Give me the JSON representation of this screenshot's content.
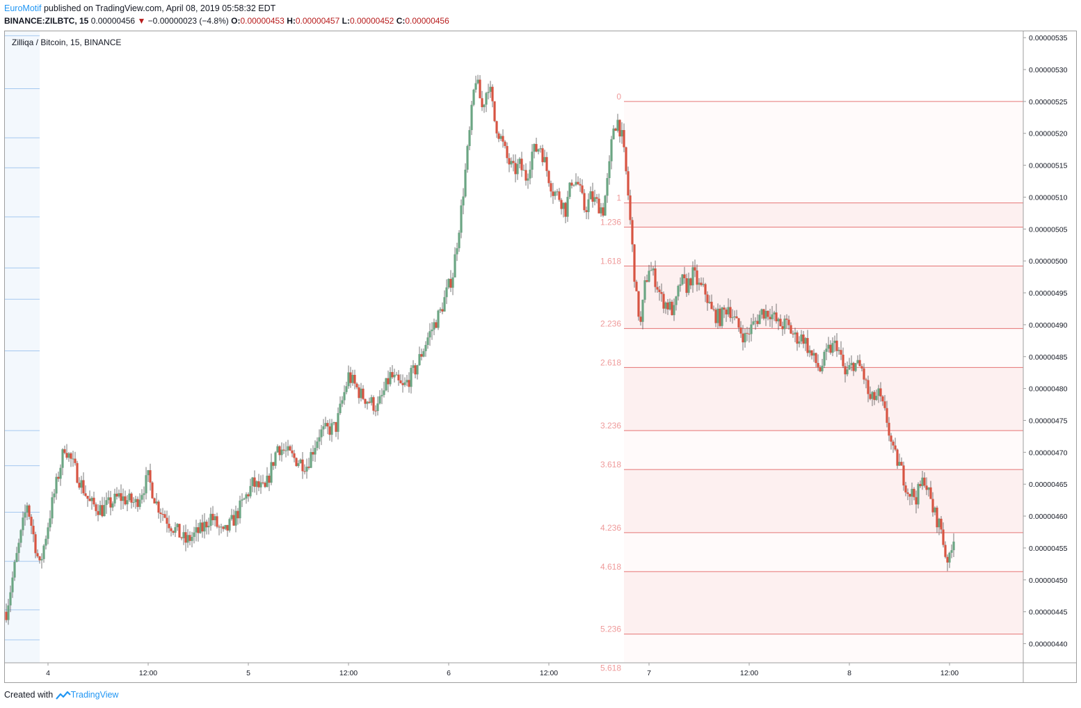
{
  "header": {
    "author": "EuroMotif",
    "published": "published on TradingView.com, April 08, 2019 05:58:32 EDT",
    "symbol": "BINANCE:ZILBTC, 15",
    "last": "0.00000456",
    "change_arrow": "▼",
    "change": "−0.00000023 (−4.8%)",
    "o_label": "O:",
    "o_val": "0.00000453",
    "h_label": "H:",
    "h_val": "0.00000457",
    "l_label": "L:",
    "l_val": "0.00000452",
    "c_label": "C:",
    "c_val": "0.00000456"
  },
  "footer": {
    "created_with": "Created with",
    "brand": "TradingView"
  },
  "colors": {
    "up": "#6ba583",
    "down": "#d75442",
    "fib_line": "#e57373",
    "fib_label": "#ef9a9a",
    "fib_fill": "#fdf0f0",
    "vol_line": "#a5c8ef",
    "vol_fill": "#f3f8fd"
  },
  "chart_data": {
    "type": "candlestick",
    "title": "Zilliqa / Bitcoin, 15, BINANCE",
    "ylim": [
      4.37e-06,
      5.36e-06
    ],
    "y_ticks": [
      "0.00000535",
      "0.00000530",
      "0.00000525",
      "0.00000520",
      "0.00000515",
      "0.00000510",
      "0.00000505",
      "0.00000500",
      "0.00000495",
      "0.00000490",
      "0.00000485",
      "0.00000480",
      "0.00000475",
      "0.00000470",
      "0.00000465",
      "0.00000460",
      "0.00000455",
      "0.00000450",
      "0.00000445",
      "0.00000440"
    ],
    "y_tick_values": [
      535,
      530,
      525,
      520,
      515,
      510,
      505,
      500,
      495,
      490,
      485,
      480,
      475,
      470,
      465,
      460,
      455,
      450,
      445,
      440
    ],
    "x_range_hours": [
      -6.5,
      96
    ],
    "x_ticks": [
      {
        "label": "4",
        "hour": 0
      },
      {
        "label": "12:00",
        "hour": 12
      },
      {
        "label": "5",
        "hour": 24
      },
      {
        "label": "12:00",
        "hour": 36
      },
      {
        "label": "6",
        "hour": 48
      },
      {
        "label": "12:00",
        "hour": 60
      },
      {
        "label": "7",
        "hour": 72
      },
      {
        "label": "12:00",
        "hour": 84
      },
      {
        "label": "8",
        "hour": 96
      },
      {
        "label": "12:00",
        "hour": 108
      }
    ],
    "bar_interval_minutes": 15,
    "close_path": [
      [
        -5.0,
        445
      ],
      [
        -4.0,
        452
      ],
      [
        -2.5,
        462
      ],
      [
        -1.0,
        452
      ],
      [
        0.5,
        462
      ],
      [
        2.0,
        471
      ],
      [
        3.0,
        468
      ],
      [
        5.0,
        462
      ],
      [
        6.5,
        461
      ],
      [
        8.5,
        463
      ],
      [
        10.5,
        462
      ],
      [
        12.0,
        466
      ],
      [
        13.0,
        462
      ],
      [
        14.5,
        459
      ],
      [
        16.5,
        456
      ],
      [
        18.5,
        458
      ],
      [
        19.5,
        460
      ],
      [
        21.0,
        457
      ],
      [
        22.5,
        460
      ],
      [
        24.5,
        465
      ],
      [
        26.0,
        464
      ],
      [
        27.5,
        471
      ],
      [
        29.5,
        469
      ],
      [
        31.0,
        468
      ],
      [
        32.5,
        473
      ],
      [
        34.5,
        474
      ],
      [
        36.0,
        482
      ],
      [
        37.5,
        479
      ],
      [
        39.5,
        477
      ],
      [
        41.0,
        482
      ],
      [
        42.5,
        480
      ],
      [
        44.0,
        483
      ],
      [
        45.5,
        488
      ],
      [
        47.0,
        492
      ],
      [
        48.5,
        498
      ],
      [
        49.5,
        508
      ],
      [
        50.5,
        520
      ],
      [
        51.2,
        529
      ],
      [
        52.0,
        524
      ],
      [
        52.8,
        528
      ],
      [
        53.5,
        522
      ],
      [
        54.3,
        519
      ],
      [
        55.0,
        516
      ],
      [
        55.8,
        514
      ],
      [
        56.5,
        515
      ],
      [
        57.3,
        513
      ],
      [
        58.0,
        517
      ],
      [
        59.0,
        518
      ],
      [
        59.8,
        514
      ],
      [
        60.5,
        511
      ],
      [
        61.3,
        510
      ],
      [
        62.0,
        508
      ],
      [
        62.8,
        513
      ],
      [
        63.5,
        512
      ],
      [
        64.3,
        508
      ],
      [
        65.0,
        510
      ],
      [
        65.8,
        509
      ],
      [
        66.5,
        508
      ],
      [
        67.2,
        514
      ],
      [
        67.7,
        521
      ],
      [
        68.3,
        522
      ],
      [
        68.8,
        519
      ],
      [
        69.4,
        512
      ],
      [
        70.0,
        502
      ],
      [
        70.5,
        494
      ],
      [
        71.0,
        490
      ],
      [
        71.5,
        496
      ],
      [
        72.0,
        499
      ],
      [
        72.8,
        497
      ],
      [
        73.5,
        494
      ],
      [
        74.3,
        493
      ],
      [
        75.0,
        492
      ],
      [
        75.8,
        497
      ],
      [
        76.5,
        496
      ],
      [
        77.3,
        498
      ],
      [
        78.0,
        496
      ],
      [
        78.8,
        495
      ],
      [
        79.5,
        492
      ],
      [
        80.5,
        491
      ],
      [
        81.5,
        493
      ],
      [
        82.5,
        490
      ],
      [
        83.5,
        488
      ],
      [
        84.5,
        490
      ],
      [
        85.5,
        492
      ],
      [
        86.5,
        492
      ],
      [
        87.5,
        490
      ],
      [
        88.5,
        490
      ],
      [
        89.5,
        488
      ],
      [
        90.5,
        488
      ],
      [
        91.5,
        485
      ],
      [
        92.5,
        483
      ],
      [
        93.5,
        486
      ],
      [
        94.5,
        487
      ],
      [
        95.5,
        482
      ],
      [
        96.5,
        484
      ],
      [
        97.5,
        483
      ],
      [
        98.5,
        478
      ],
      [
        99.5,
        479
      ],
      [
        100.5,
        475
      ],
      [
        101.2,
        470
      ],
      [
        102.0,
        468
      ],
      [
        103.0,
        464
      ],
      [
        104.0,
        463
      ],
      [
        105.0,
        466
      ],
      [
        106.0,
        461
      ],
      [
        107.0,
        458
      ],
      [
        107.5,
        454
      ],
      [
        108.0,
        453
      ],
      [
        108.5,
        456
      ]
    ],
    "fibonacci": {
      "start_hour": 69.0,
      "end_hour": 127.0,
      "levels": [
        {
          "label": "0",
          "value": 525.0
        },
        {
          "label": "1",
          "value": 509.1
        },
        {
          "label": "1.236",
          "value": 505.3
        },
        {
          "label": "1.618",
          "value": 499.2
        },
        {
          "label": "2.236",
          "value": 489.4
        },
        {
          "label": "2.618",
          "value": 483.3
        },
        {
          "label": "3.236",
          "value": 473.4
        },
        {
          "label": "3.618",
          "value": 467.3
        },
        {
          "label": "4.236",
          "value": 457.4
        },
        {
          "label": "4.618",
          "value": 451.3
        },
        {
          "label": "5.236",
          "value": 441.5
        },
        {
          "label": "5.618",
          "value": 435.4
        }
      ]
    },
    "volume_profile": {
      "end_hour": -1.0,
      "levels": [
        535.3,
        527.0,
        519.3,
        514.6,
        506.9,
        498.9,
        494.0,
        485.9,
        473.4,
        467.9,
        460.6,
        452.9,
        445.3,
        440.6
      ]
    }
  }
}
